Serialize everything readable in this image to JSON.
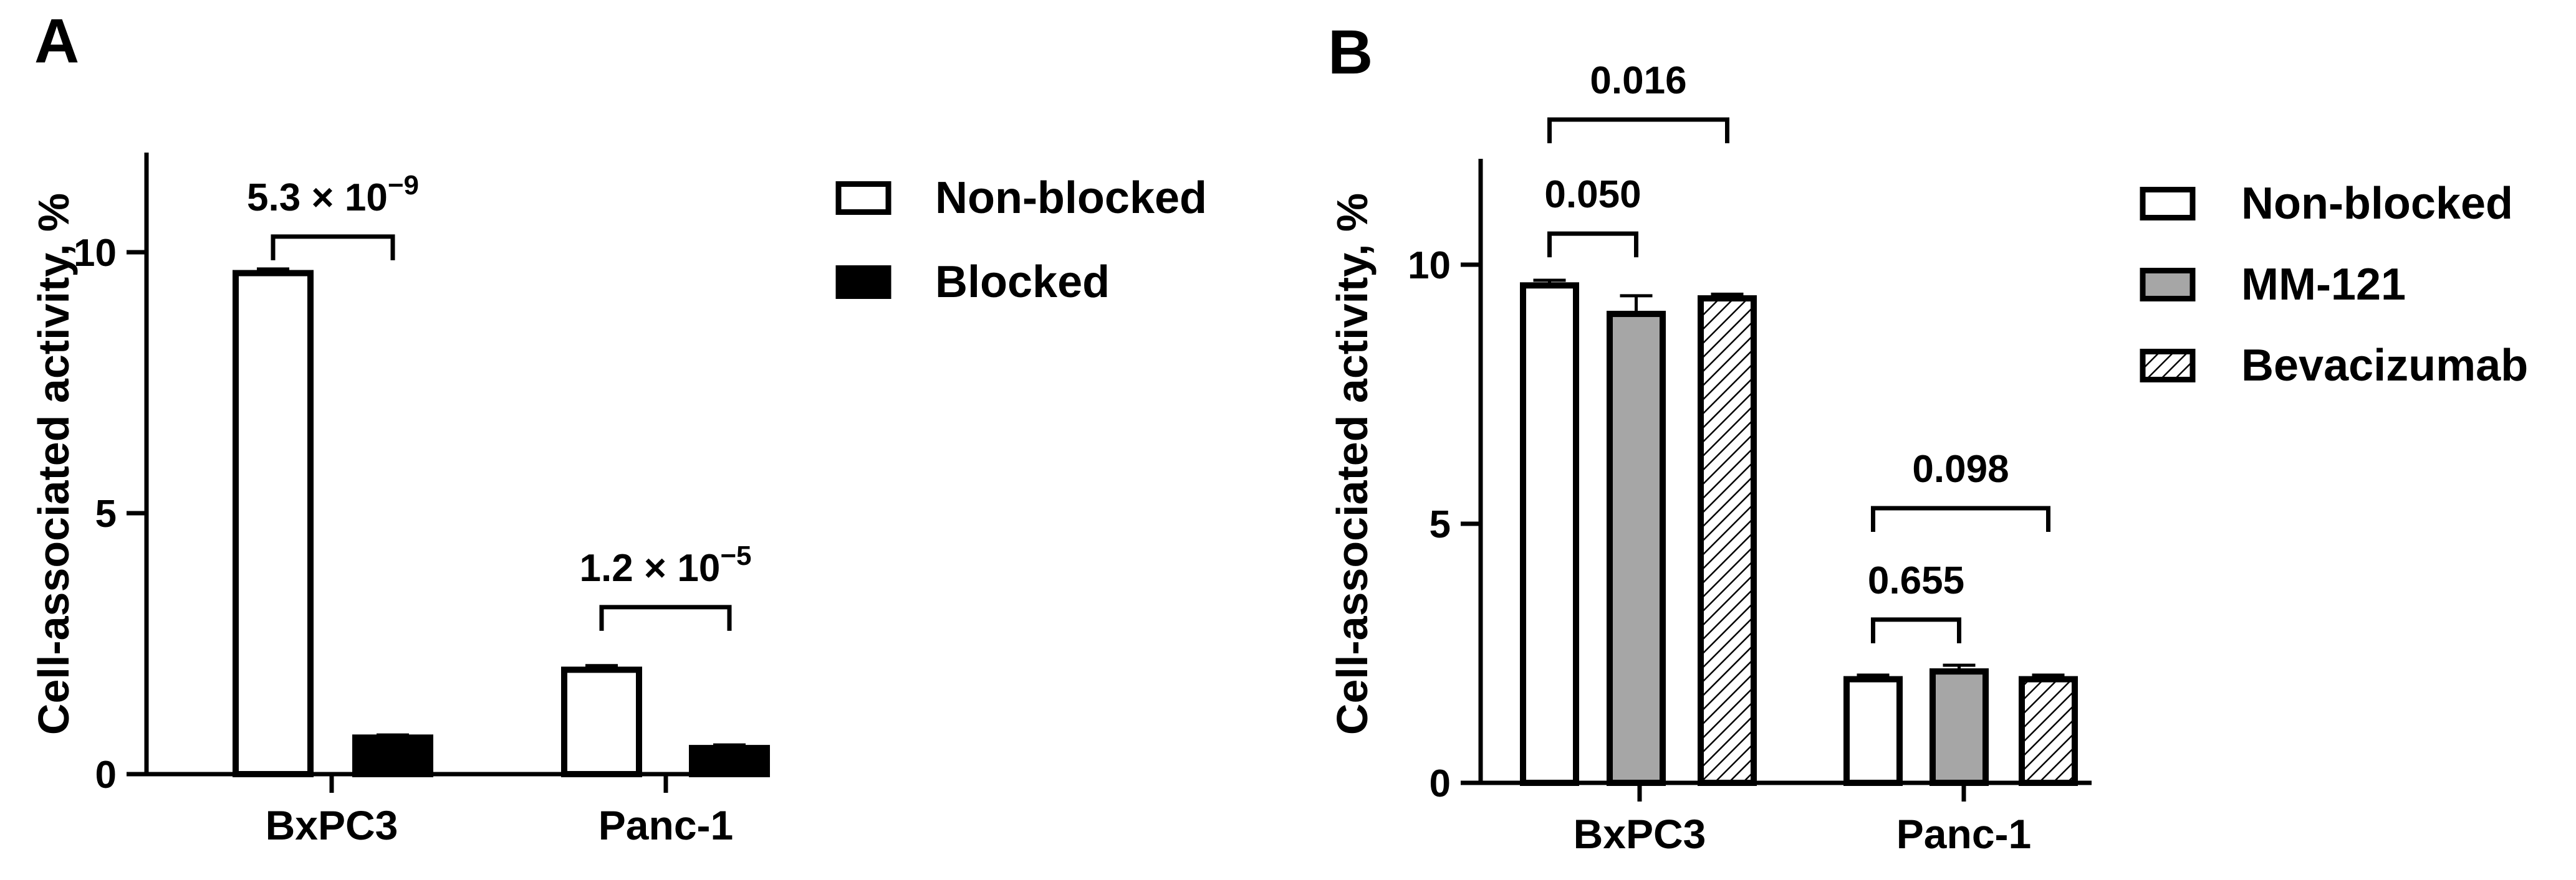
{
  "colors": {
    "ink": "#000000",
    "background": "#ffffff",
    "mm121_fill": "#a6a6a6",
    "open_fill": "#ffffff",
    "hatch_fill": "diagonal-hatch"
  },
  "chart_data": [
    {
      "type": "bar",
      "panel_label": "A",
      "title": "",
      "xlabel": "",
      "ylabel": "Cell-associated activity, %",
      "ylim": [
        0,
        12
      ],
      "yticks": [
        0,
        5,
        10
      ],
      "categories": [
        "BxPC3",
        "Panc-1"
      ],
      "series": [
        {
          "name": "Non-blocked",
          "fill": "open",
          "values": [
            9.6,
            2.0
          ],
          "errors": [
            0.08,
            0.08
          ]
        },
        {
          "name": "Blocked",
          "fill": "solid",
          "values": [
            0.7,
            0.5
          ],
          "errors": [
            0.05,
            0.06
          ]
        }
      ],
      "legend_position": "top-right",
      "annotations": [
        {
          "category": "BxPC3",
          "from_series": 0,
          "to_series": 1,
          "y": 10.3,
          "text_base": "5.3 × 10",
          "text_exp": "−9"
        },
        {
          "category": "Panc-1",
          "from_series": 0,
          "to_series": 1,
          "y": 3.2,
          "text_base": "1.2 × 10",
          "text_exp": "−5"
        }
      ],
      "grid": false
    },
    {
      "type": "bar",
      "panel_label": "B",
      "title": "",
      "xlabel": "",
      "ylabel": "Cell-associated activity, %",
      "ylim": [
        0,
        12
      ],
      "yticks": [
        0,
        5,
        10
      ],
      "categories": [
        "BxPC3",
        "Panc-1"
      ],
      "series": [
        {
          "name": "Non-blocked",
          "fill": "open",
          "values": [
            9.6,
            2.0
          ],
          "errors": [
            0.1,
            0.08
          ]
        },
        {
          "name": "MM-121",
          "fill": "gray",
          "values": [
            9.05,
            2.15
          ],
          "errors": [
            0.35,
            0.12
          ]
        },
        {
          "name": "Bevacizumab",
          "fill": "hatch",
          "values": [
            9.35,
            2.0
          ],
          "errors": [
            0.08,
            0.08
          ]
        }
      ],
      "legend_position": "top-right",
      "annotations": [
        {
          "category": "BxPC3",
          "from_series": 0,
          "to_series": 1,
          "y": 10.6,
          "text_base": "0.050"
        },
        {
          "category": "BxPC3",
          "from_series": 0,
          "to_series": 2,
          "y": 12.8,
          "text_base": "0.016"
        },
        {
          "category": "Panc-1",
          "from_series": 0,
          "to_series": 1,
          "y": 3.15,
          "text_base": "0.655"
        },
        {
          "category": "Panc-1",
          "from_series": 0,
          "to_series": 2,
          "y": 5.3,
          "text_base": "0.098"
        }
      ],
      "grid": false
    }
  ]
}
